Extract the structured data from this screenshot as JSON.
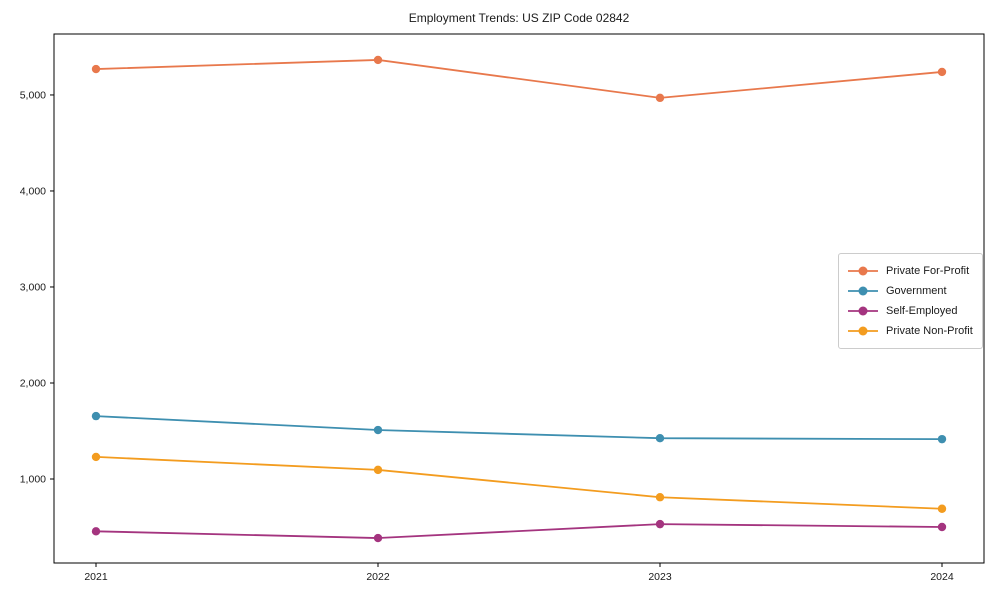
{
  "chart_data": {
    "type": "line",
    "title": "Employment Trends: US ZIP Code 02842",
    "x": [
      2021,
      2022,
      2023,
      2024
    ],
    "x_tick_labels": [
      "2021",
      "2022",
      "2023",
      "2024"
    ],
    "y_ticks": [
      1000,
      2000,
      3000,
      4000,
      5000
    ],
    "y_tick_labels": [
      "1,000",
      "2,000",
      "3,000",
      "4,000",
      "5,000"
    ],
    "ylim": [
      125,
      5635
    ],
    "grid": false,
    "legend_position": "center-right",
    "marker": "circle",
    "series": [
      {
        "name": "Private For-Profit",
        "color": "#E8784C",
        "values": [
          5270,
          5365,
          4970,
          5240
        ]
      },
      {
        "name": "Government",
        "color": "#3E8FB0",
        "values": [
          1655,
          1510,
          1425,
          1415
        ]
      },
      {
        "name": "Self-Employed",
        "color": "#A4347F",
        "values": [
          455,
          385,
          530,
          500
        ]
      },
      {
        "name": "Private Non-Profit",
        "color": "#F39C1F",
        "values": [
          1230,
          1095,
          810,
          690
        ]
      }
    ]
  }
}
